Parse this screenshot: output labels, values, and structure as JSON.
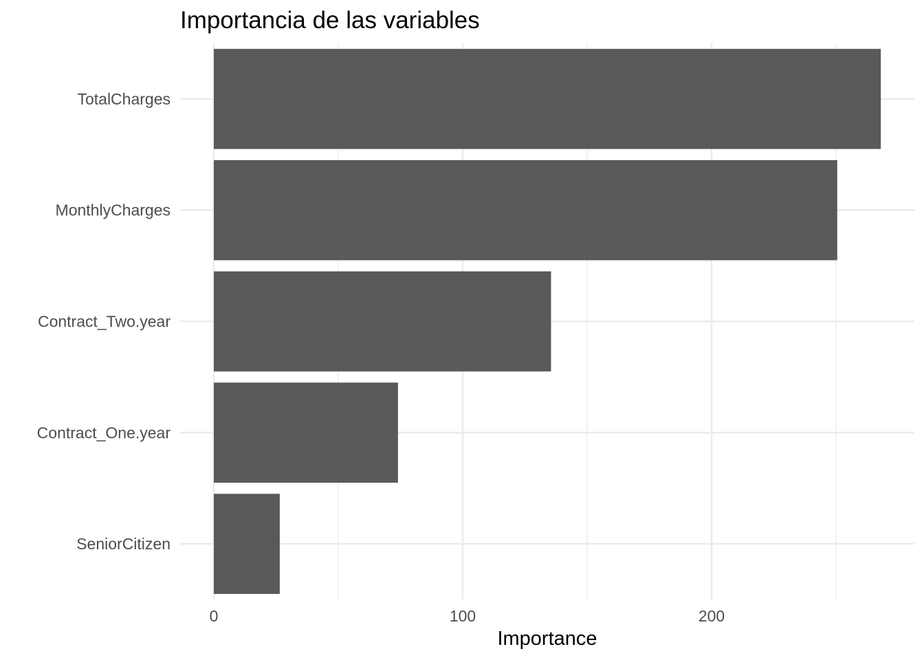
{
  "chart_data": {
    "type": "bar",
    "orientation": "horizontal",
    "title": "Importancia de las variables",
    "xlabel": "Importance",
    "ylabel": "",
    "categories": [
      "TotalCharges",
      "MonthlyCharges",
      "Contract_Two.year",
      "Contract_One.year",
      "SeniorCitizen"
    ],
    "values": [
      268,
      250.5,
      135.5,
      74,
      26.5
    ],
    "xlim": [
      0,
      281
    ],
    "xticks": [
      0,
      100,
      200
    ],
    "xtick_labels": [
      "0",
      "100",
      "200"
    ],
    "grid": true,
    "legend": "none",
    "bar_color": "#595959",
    "grid_color": "#ebebeb"
  }
}
